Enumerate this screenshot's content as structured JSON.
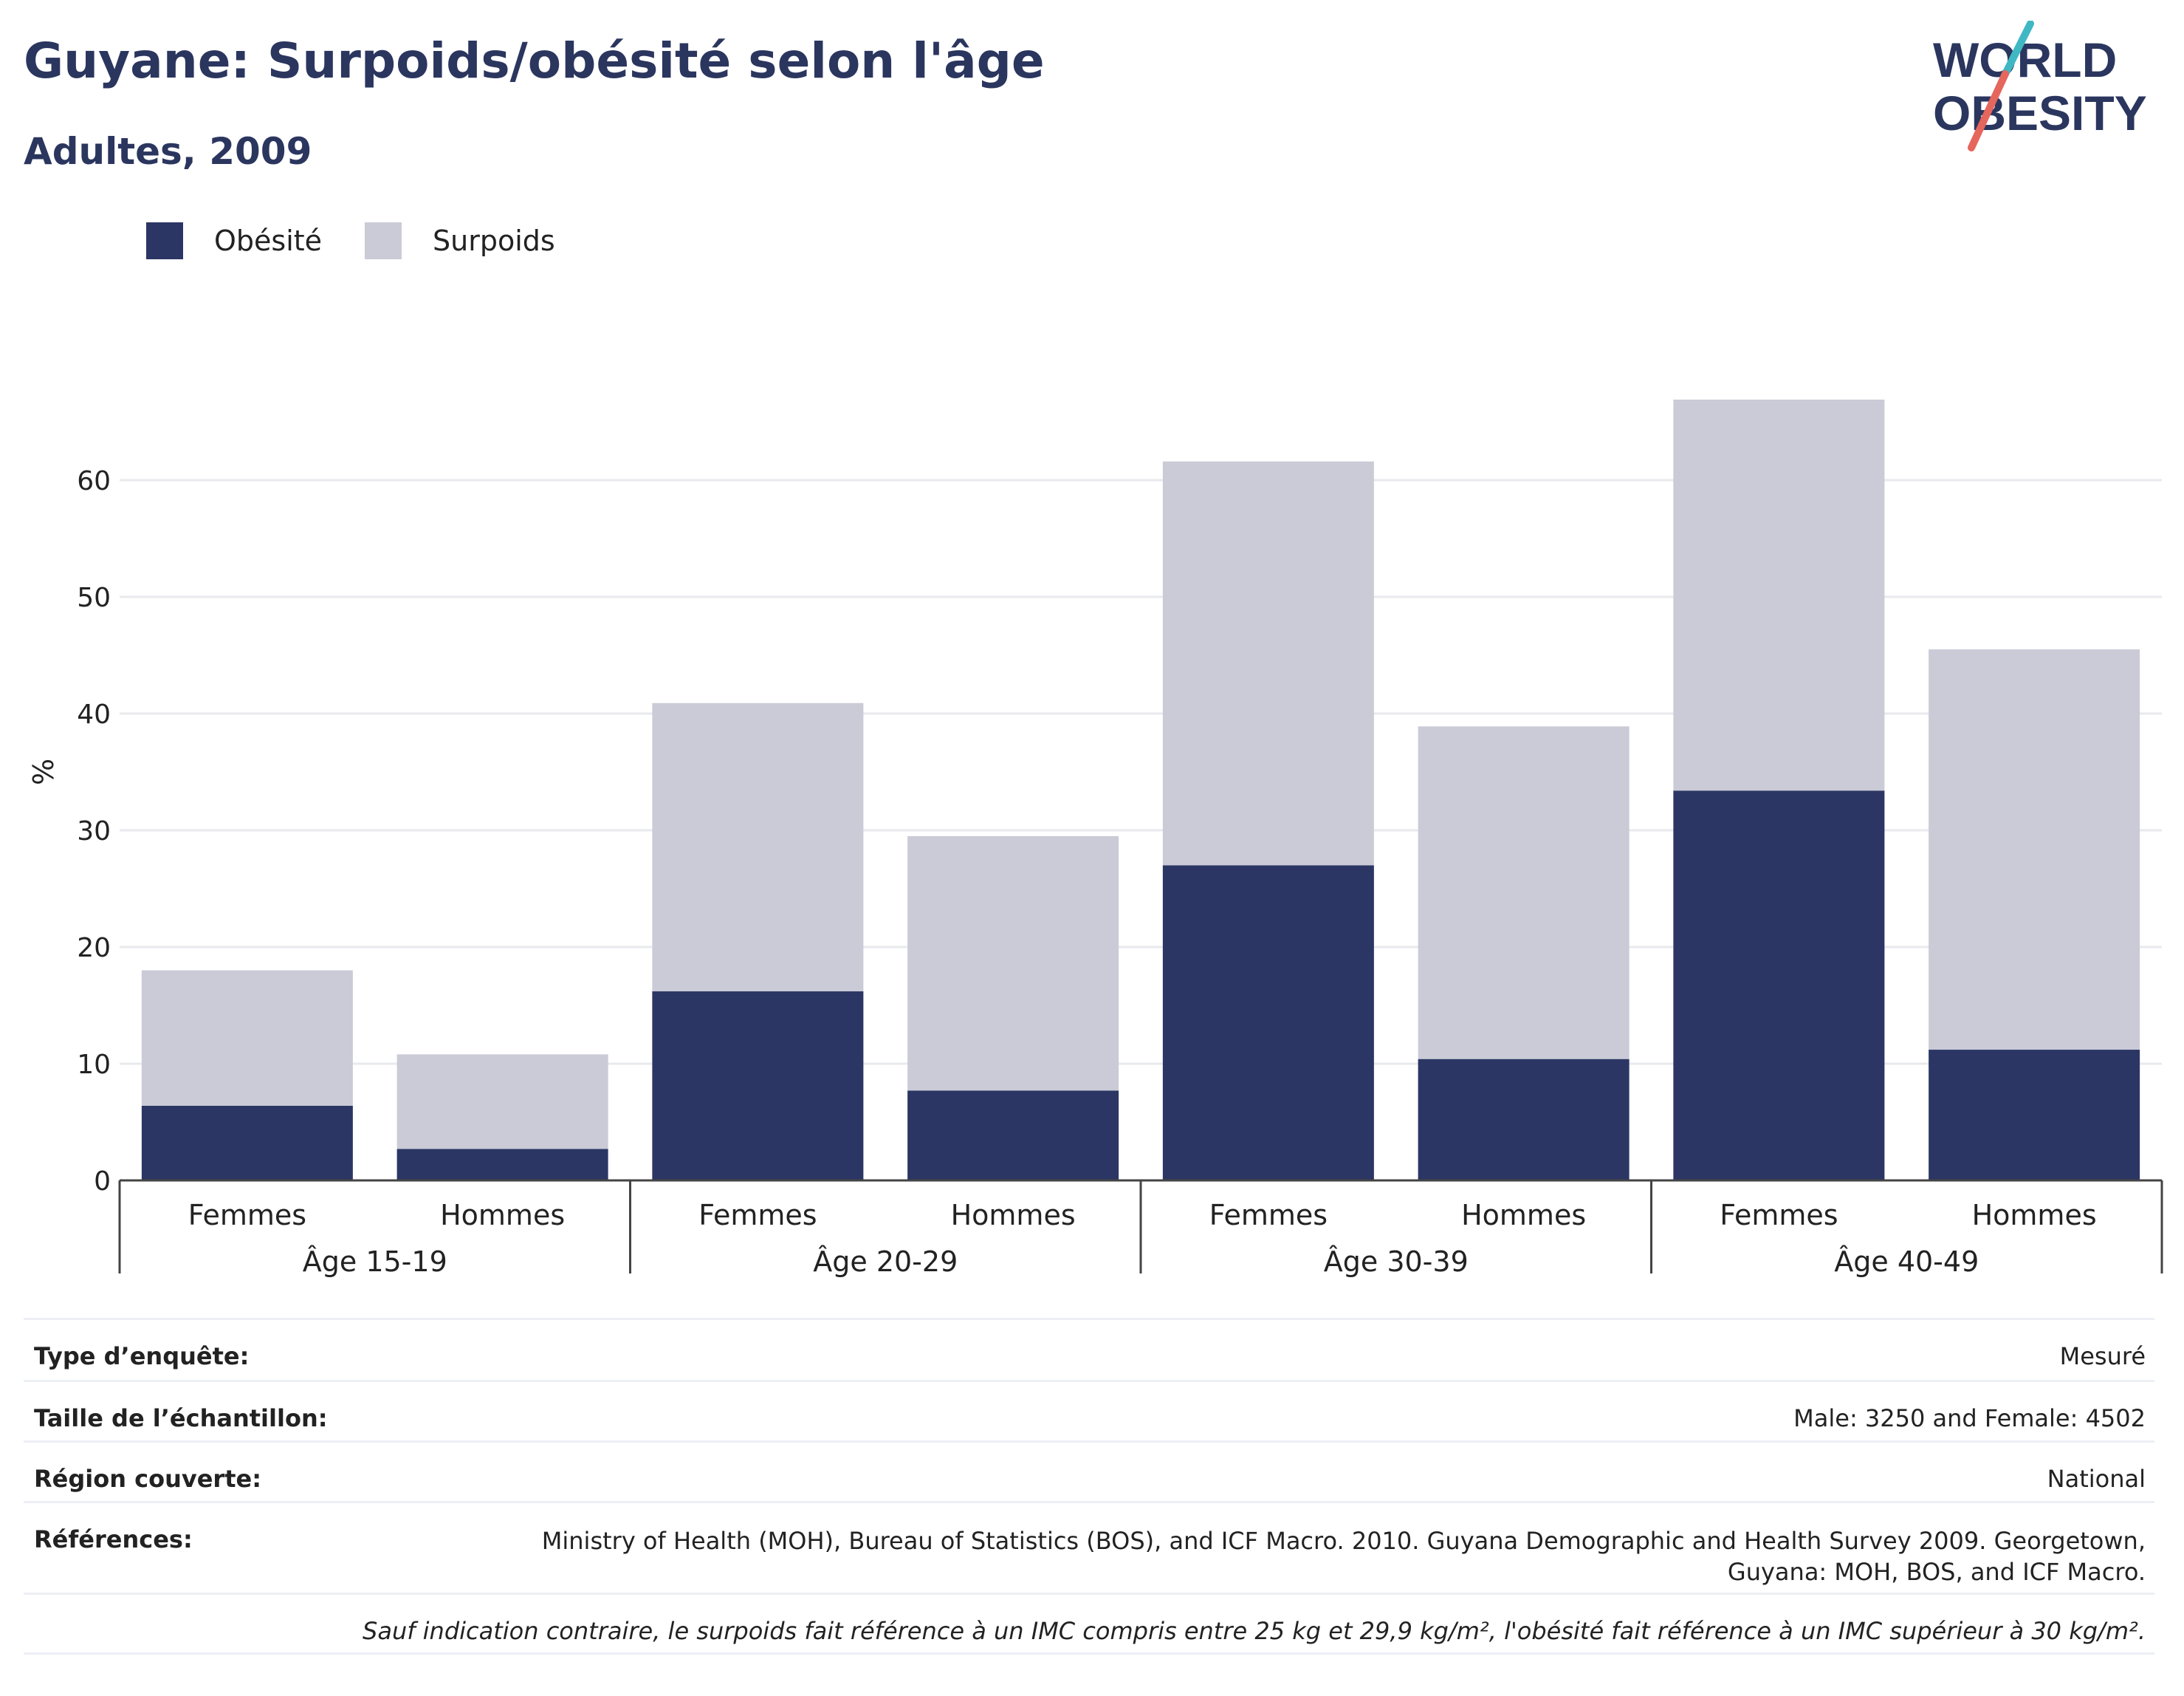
{
  "header": {
    "title": "Guyane: Surpoids/obésité selon l'âge",
    "subtitle": "Adultes, 2009"
  },
  "logo": {
    "line1": "WORLD",
    "line2": "OBESITY"
  },
  "legend": [
    {
      "label": "Obésité",
      "color": "#2b3664"
    },
    {
      "label": "Surpoids",
      "color": "#cacbd7"
    }
  ],
  "chart_data": {
    "type": "bar",
    "stacked": true,
    "ylabel": "%",
    "ylim": [
      0,
      70
    ],
    "yticks": [
      0,
      10,
      20,
      30,
      40,
      50,
      60
    ],
    "grid": true,
    "legend_position": "top-left",
    "groups": [
      "Âge 15-19",
      "Âge 20-29",
      "Âge 30-39",
      "Âge 40-49"
    ],
    "categories": [
      "Femmes",
      "Hommes",
      "Femmes",
      "Hommes",
      "Femmes",
      "Hommes",
      "Femmes",
      "Hommes"
    ],
    "series": [
      {
        "name": "Obésité",
        "color": "#2b3664",
        "values": [
          6.4,
          2.7,
          16.2,
          7.7,
          27.0,
          10.4,
          33.4,
          11.2
        ]
      },
      {
        "name": "Surpoids",
        "color": "#cacbd7",
        "values": [
          11.6,
          8.1,
          24.7,
          21.8,
          34.6,
          28.5,
          33.5,
          34.3
        ]
      }
    ]
  },
  "info": {
    "survey_type_label": "Type d’enquête:",
    "survey_type_value": "Mesuré",
    "sample_size_label": "Taille de l’échantillon:",
    "sample_size_value": "Male: 3250 and Female: 4502",
    "region_label": "Région couverte:",
    "region_value": "National",
    "references_label": "Références:",
    "references_value": "Ministry of Health (MOH), Bureau of Statistics (BOS), and ICF Macro. 2010. Guyana Demographic and Health Survey 2009. Georgetown, Guyana: MOH, BOS, and ICF Macro.",
    "note": "Sauf indication contraire, le surpoids fait référence à un IMC compris entre 25 kg et 29,9 kg/m², l'obésité fait référence à un IMC supérieur à 30 kg/m²."
  }
}
